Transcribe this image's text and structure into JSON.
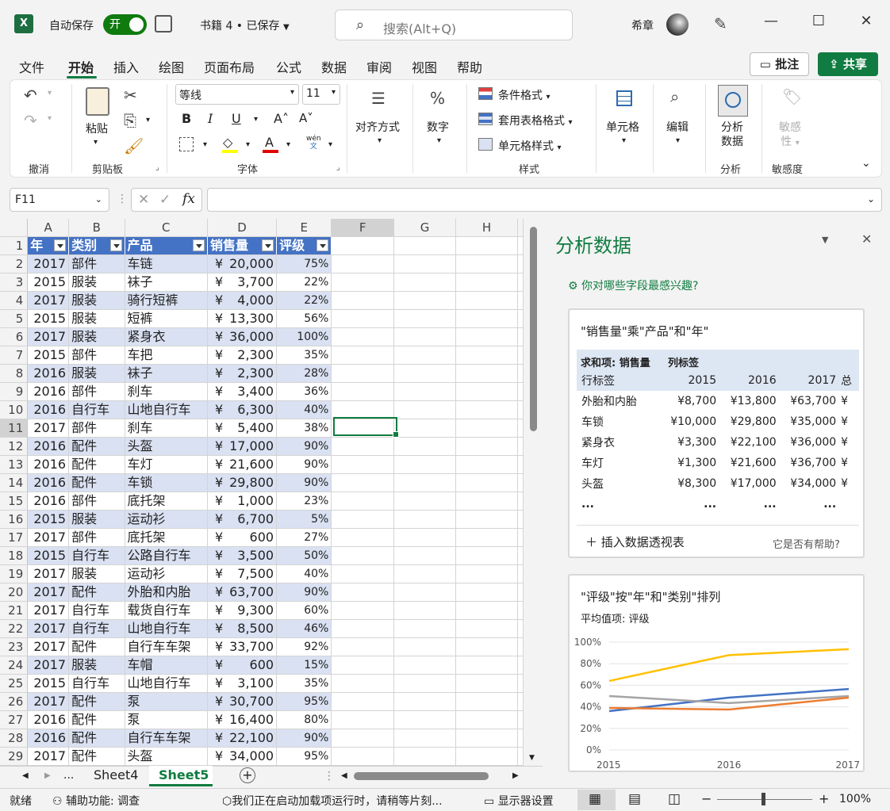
{
  "title_bar": {
    "app_icon": "excel-logo",
    "autosave_label": "自动保存",
    "autosave_state": "开",
    "document_title": "书籍 4 • 已保存",
    "search_placeholder": "搜索(Alt+Q)",
    "user_name": "希章"
  },
  "menu": {
    "tabs": [
      "文件",
      "开始",
      "插入",
      "绘图",
      "页面布局",
      "公式",
      "数据",
      "审阅",
      "视图",
      "帮助"
    ],
    "comment_button": "批注",
    "share_button": "共享"
  },
  "ribbon": {
    "groups": {
      "undo": "撤消",
      "clipboard": "剪贴板",
      "font": "字体",
      "styles": "样式",
      "analysis": "分析",
      "sensitivity": "敏感度"
    },
    "paste": "粘贴",
    "font_name": "等线",
    "font_size": "11",
    "phonetic_top": "wén",
    "phonetic_bottom": "文",
    "alignment": "对齐方式",
    "number": "数字",
    "conditional_format": "条件格式",
    "table_format": "套用表格格式",
    "cell_styles": "单元格样式",
    "cells": "单元格",
    "editing": "编辑",
    "analyze_line1": "分析",
    "analyze_line2": "数据",
    "sensitivity_line1": "敏感",
    "sensitivity_line2": "性"
  },
  "formula_bar": {
    "name_box": "F11",
    "formula": ""
  },
  "sheet": {
    "columns": [
      "A",
      "B",
      "C",
      "D",
      "E",
      "F",
      "G",
      "H"
    ],
    "header_row": [
      "年",
      "类别",
      "产品",
      "销售量",
      "评级"
    ],
    "currency_symbol": "¥",
    "rows": [
      [
        "2017",
        "部件",
        "车链",
        "20,000",
        "75%"
      ],
      [
        "2015",
        "服装",
        "袜子",
        "3,700",
        "22%"
      ],
      [
        "2017",
        "服装",
        "骑行短裤",
        "4,000",
        "22%"
      ],
      [
        "2015",
        "服装",
        "短裤",
        "13,300",
        "56%"
      ],
      [
        "2017",
        "服装",
        "紧身衣",
        "36,000",
        "100%"
      ],
      [
        "2015",
        "部件",
        "车把",
        "2,300",
        "35%"
      ],
      [
        "2016",
        "服装",
        "袜子",
        "2,300",
        "28%"
      ],
      [
        "2016",
        "部件",
        "刹车",
        "3,400",
        "36%"
      ],
      [
        "2016",
        "自行车",
        "山地自行车",
        "6,300",
        "40%"
      ],
      [
        "2017",
        "部件",
        "刹车",
        "5,400",
        "38%"
      ],
      [
        "2016",
        "配件",
        "头盔",
        "17,000",
        "90%"
      ],
      [
        "2016",
        "配件",
        "车灯",
        "21,600",
        "90%"
      ],
      [
        "2016",
        "配件",
        "车锁",
        "29,800",
        "90%"
      ],
      [
        "2016",
        "部件",
        "底托架",
        "1,000",
        "23%"
      ],
      [
        "2015",
        "服装",
        "运动衫",
        "6,700",
        "5%"
      ],
      [
        "2017",
        "部件",
        "底托架",
        "600",
        "27%"
      ],
      [
        "2015",
        "自行车",
        "公路自行车",
        "3,500",
        "50%"
      ],
      [
        "2017",
        "服装",
        "运动衫",
        "7,500",
        "40%"
      ],
      [
        "2017",
        "配件",
        "外胎和内胎",
        "63,700",
        "90%"
      ],
      [
        "2017",
        "自行车",
        "载货自行车",
        "9,300",
        "60%"
      ],
      [
        "2017",
        "自行车",
        "山地自行车",
        "8,500",
        "46%"
      ],
      [
        "2017",
        "配件",
        "自行车车架",
        "33,700",
        "92%"
      ],
      [
        "2017",
        "服装",
        "车帽",
        "600",
        "15%"
      ],
      [
        "2015",
        "自行车",
        "山地自行车",
        "3,100",
        "35%"
      ],
      [
        "2017",
        "配件",
        "泵",
        "30,700",
        "95%"
      ],
      [
        "2016",
        "配件",
        "泵",
        "16,400",
        "80%"
      ],
      [
        "2016",
        "配件",
        "自行车车架",
        "22,100",
        "90%"
      ],
      [
        "2017",
        "配件",
        "头盔",
        "34,000",
        "95%"
      ]
    ],
    "tabs": [
      "Sheet4",
      "Sheet5"
    ],
    "active_tab": "Sheet5",
    "tab_overflow": "..."
  },
  "pane": {
    "title": "分析数据",
    "prompt": "你对哪些字段最感兴趣?",
    "card1": {
      "title": "\"销售量\"乘\"产品\"和\"年\"",
      "sum_label": "求和项: 销售量",
      "col_label": "列标签",
      "row_label": "行标签",
      "years": [
        "2015",
        "2016",
        "2017"
      ],
      "overflow_header": "总",
      "rows": [
        {
          "label": "外胎和内胎",
          "values": [
            "¥8,700",
            "¥13,800",
            "¥63,700"
          ]
        },
        {
          "label": "车锁",
          "values": [
            "¥10,000",
            "¥29,800",
            "¥35,000"
          ]
        },
        {
          "label": "紧身衣",
          "values": [
            "¥3,300",
            "¥22,100",
            "¥36,000"
          ]
        },
        {
          "label": "车灯",
          "values": [
            "¥1,300",
            "¥21,600",
            "¥36,700"
          ]
        },
        {
          "label": "头盔",
          "values": [
            "¥8,300",
            "¥17,000",
            "¥34,000"
          ]
        }
      ],
      "overflow_cell": "¥",
      "ellipsis": "...",
      "insert_label": "插入数据透视表",
      "feedback": "它是否有帮助?"
    },
    "card2": {
      "title": "\"评级\"按\"年\"和\"类别\"排列",
      "subtitle": "平均值项: 评级"
    }
  },
  "chart_data": {
    "type": "line",
    "title": "\"评级\"按\"年\"和\"类别\"排列",
    "x": [
      "2015",
      "2016",
      "2017"
    ],
    "ylim": [
      0,
      1
    ],
    "yticks": [
      "0%",
      "20%",
      "40%",
      "60%",
      "80%",
      "100%"
    ],
    "grid": true,
    "series": [
      {
        "color": "#ffc000",
        "values": [
          0.64,
          0.88,
          0.935
        ]
      },
      {
        "color": "#4472c4",
        "values": [
          0.36,
          0.485,
          0.565
        ]
      },
      {
        "color": "#a5a5a5",
        "values": [
          0.5,
          0.435,
          0.5
        ]
      },
      {
        "color": "#ed7d31",
        "values": [
          0.39,
          0.375,
          0.485
        ]
      }
    ]
  },
  "status_bar": {
    "ready": "就绪",
    "accessibility": "辅助功能: 调查",
    "addin_message": "我们正在启动加载项运行时，请稍等片刻...",
    "display_settings": "显示器设置",
    "zoom": "100%"
  }
}
